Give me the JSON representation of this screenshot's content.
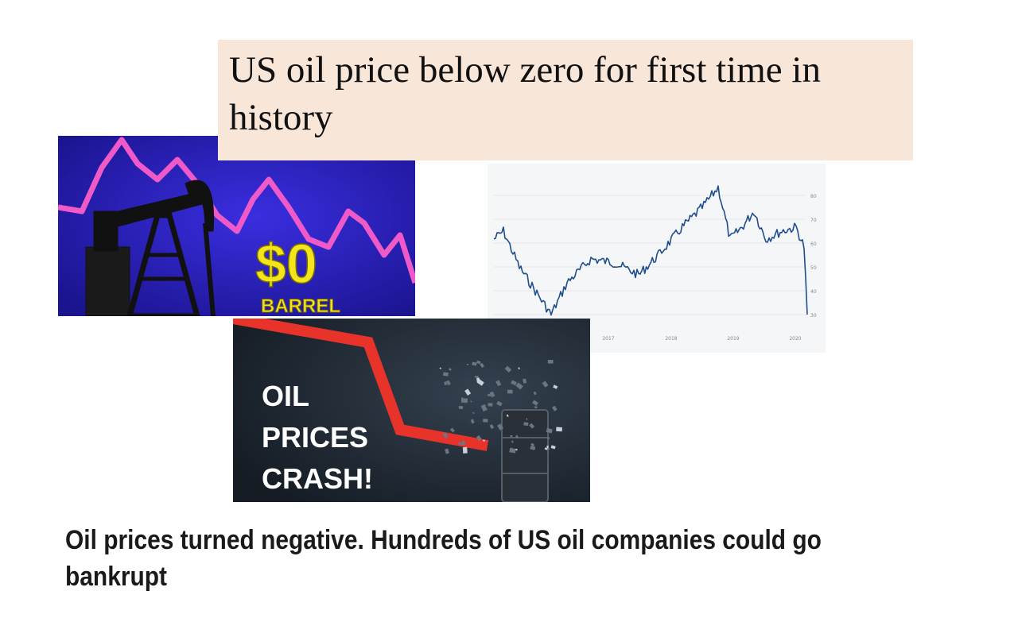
{
  "headline": "US oil price below zero for first time in history",
  "pumpjack_image": {
    "price_text": "$0",
    "unit_text": "BARREL"
  },
  "chart_image": {
    "x_ticks": [
      "2017",
      "2018",
      "2019",
      "2020"
    ],
    "y_ticks": [
      "80",
      "70",
      "60",
      "50",
      "40",
      "30"
    ],
    "line_color": "#1f4e8c"
  },
  "crash_image": {
    "lines": [
      "OIL",
      "PRICES",
      "CRASH!"
    ]
  },
  "caption": "Oil prices turned negative. Hundreds of US oil companies could go bankrupt",
  "colors": {
    "headline_bg": "#f8e6d9",
    "pump_bg": "#2b22c9",
    "pump_line": "#f05ac8",
    "crash_bg": "#1c2530",
    "crash_arrow": "#e8332b"
  }
}
